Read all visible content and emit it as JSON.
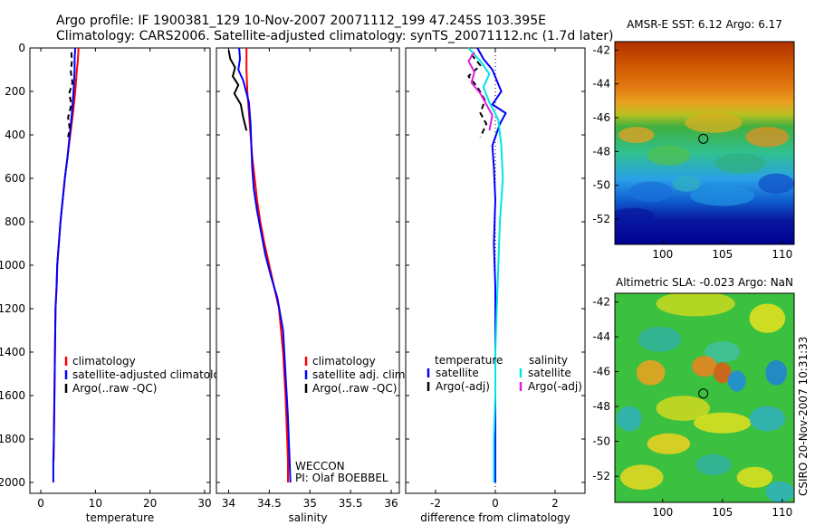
{
  "header": {
    "line1": "Argo profile: IF 1900381_129 10-Nov-2007 20071112_199 47.245S 103.395E",
    "line2": "Climatology: CARS2006. Satellite-adjusted climatology: synTS_20071112.nc (1.7d later)"
  },
  "side_stamp": "CSIRO 20-Nov-2007 10:31:33",
  "colors": {
    "climatology": "#ff0000",
    "satellite": "#0000ff",
    "argo": "#000000",
    "salinity_satellite": "#00e5e5",
    "salinity_argo": "#e020e0"
  },
  "chart_data": [
    {
      "type": "line",
      "xlabel": "temperature",
      "ylabel": "",
      "xlim": [
        -2,
        31
      ],
      "ylim": [
        2050,
        0
      ],
      "xticks": [
        "0",
        "10",
        "20",
        "30"
      ],
      "yticks": [
        "0",
        "200",
        "400",
        "600",
        "800",
        "1000",
        "1200",
        "1400",
        "1600",
        "1800",
        "2000"
      ],
      "legend": {
        "placement": "lower-right",
        "entries": [
          "climatology",
          "satellite-adjusted climatology",
          "Argo(..raw -QC)"
        ]
      },
      "series": [
        {
          "name": "climatology",
          "style": "solid",
          "x": [
            6.9,
            6.8,
            6.6,
            6.3,
            5.9,
            5.4,
            4.9,
            4.4,
            4.0,
            3.6,
            3.3,
            3.0,
            2.9,
            2.7,
            2.6,
            2.5,
            2.4,
            2.35
          ],
          "y": [
            0,
            50,
            100,
            200,
            300,
            400,
            500,
            600,
            700,
            800,
            900,
            1000,
            1100,
            1200,
            1400,
            1600,
            1800,
            1900
          ]
        },
        {
          "name": "satellite-adjusted climatology",
          "style": "solid",
          "x": [
            6.3,
            6.2,
            6.2,
            6.0,
            5.7,
            5.3,
            4.9,
            4.4,
            4.0,
            3.6,
            3.3,
            3.0,
            2.9,
            2.7,
            2.6,
            2.5,
            2.4,
            2.3,
            2.3
          ],
          "y": [
            0,
            50,
            100,
            200,
            300,
            400,
            500,
            600,
            700,
            800,
            900,
            1000,
            1100,
            1200,
            1400,
            1600,
            1800,
            1900,
            2000
          ]
        },
        {
          "name": "Argo(..raw -QC)",
          "style": "dashed",
          "x": [
            5.6,
            5.7,
            5.5,
            5.8,
            5.2,
            5.6,
            5.0,
            5.3,
            5.0
          ],
          "y": [
            20,
            60,
            110,
            160,
            210,
            260,
            320,
            370,
            410
          ]
        }
      ]
    },
    {
      "type": "line",
      "xlabel": "salinity",
      "ylabel": "",
      "xlim": [
        33.85,
        36.1
      ],
      "ylim": [
        2050,
        0
      ],
      "xticks": [
        "34",
        "34.5",
        "35",
        "35.5",
        "36"
      ],
      "legend": {
        "placement": "lower-right",
        "entries": [
          "climatology",
          "satellite adj. clim.",
          "Argo(..raw -QC)"
        ]
      },
      "annotations": [
        "WECCON",
        "PI: Olaf BOEBBEL"
      ],
      "series": [
        {
          "name": "climatology",
          "style": "solid",
          "x": [
            34.22,
            34.22,
            34.23,
            34.25,
            34.27,
            34.29,
            34.32,
            34.35,
            34.39,
            34.44,
            34.5,
            34.56,
            34.62,
            34.67,
            34.7,
            34.72,
            34.73,
            34.73
          ],
          "y": [
            0,
            100,
            200,
            300,
            400,
            500,
            600,
            700,
            800,
            900,
            1000,
            1100,
            1200,
            1400,
            1600,
            1800,
            1900,
            2000
          ]
        },
        {
          "name": "satellite adj. clim.",
          "style": "solid",
          "x": [
            34.13,
            34.14,
            34.12,
            34.18,
            34.25,
            34.27,
            34.28,
            34.29,
            34.31,
            34.35,
            34.4,
            34.45,
            34.52,
            34.6,
            34.67,
            34.7,
            34.73,
            34.75,
            34.76
          ],
          "y": [
            0,
            50,
            100,
            150,
            250,
            350,
            450,
            550,
            650,
            750,
            850,
            950,
            1050,
            1150,
            1300,
            1500,
            1700,
            1900,
            2000
          ]
        },
        {
          "name": "Argo(..raw -QC)",
          "style": "solid",
          "x": [
            34.0,
            34.02,
            34.08,
            34.05,
            34.12,
            34.07,
            34.15,
            34.18,
            34.22
          ],
          "y": [
            10,
            50,
            90,
            130,
            170,
            210,
            260,
            320,
            380
          ]
        }
      ]
    },
    {
      "type": "line",
      "xlabel": "difference from climatology",
      "ylabel": "",
      "xlim": [
        -3,
        3
      ],
      "ylim": [
        2050,
        0
      ],
      "xticks": [
        "-2",
        "0",
        "2"
      ],
      "legend": {
        "placement": "lower-right",
        "headings": [
          "temperature",
          "salinity"
        ],
        "entries": [
          "satellite",
          "Argo(-adj)",
          "satellite",
          "Argo(-adj)"
        ]
      },
      "series": [
        {
          "name": "temperature satellite",
          "style": "solid",
          "x": [
            -0.6,
            -0.4,
            -0.1,
            0.2,
            -0.1,
            0.35,
            0.15,
            -0.1,
            -0.05,
            0.0,
            -0.05,
            0.0,
            0.0,
            0.0,
            0.0,
            0.0
          ],
          "y": [
            0,
            50,
            100,
            200,
            260,
            300,
            350,
            450,
            550,
            700,
            900,
            1100,
            1300,
            1500,
            1800,
            2000
          ]
        },
        {
          "name": "temperature Argo(-adj)",
          "style": "dashed",
          "x": [
            -0.8,
            -0.5,
            -0.9,
            -0.6,
            -0.35,
            -0.5,
            -0.3,
            -0.5
          ],
          "y": [
            30,
            80,
            130,
            180,
            240,
            300,
            350,
            410
          ]
        },
        {
          "name": "salinity satellite",
          "style": "solid",
          "x": [
            -0.9,
            -0.5,
            -0.2,
            -0.4,
            -0.2,
            0.1,
            0.2,
            0.25,
            0.15,
            0.1,
            0.05,
            0.0,
            0.0,
            -0.05,
            -0.05,
            -0.05
          ],
          "y": [
            0,
            60,
            120,
            180,
            250,
            330,
            450,
            600,
            800,
            1000,
            1200,
            1400,
            1600,
            1800,
            1900,
            2000
          ]
        },
        {
          "name": "salinity Argo(-adj)",
          "style": "solid",
          "x": [
            -0.7,
            -0.9,
            -0.7,
            -0.8,
            -0.5,
            -0.3,
            -0.1,
            -0.2
          ],
          "y": [
            20,
            60,
            110,
            160,
            210,
            260,
            310,
            380
          ]
        }
      ]
    },
    {
      "type": "heatmap",
      "title": "AMSR-E SST: 6.12 Argo: 6.17",
      "xlim": [
        96,
        111
      ],
      "ylim": [
        -53.5,
        -41.5
      ],
      "xticks": [
        "100",
        "105",
        "110"
      ],
      "yticks": [
        "-42",
        "-44",
        "-46",
        "-48",
        "-50",
        "-52"
      ],
      "marker": {
        "lon": 103.4,
        "lat": -47.25
      }
    },
    {
      "type": "heatmap",
      "title": "Altimetric SLA: -0.023 Argo: NaN",
      "xlim": [
        96,
        111
      ],
      "ylim": [
        -53.5,
        -41.5
      ],
      "xticks": [
        "100",
        "105",
        "110"
      ],
      "yticks": [
        "-42",
        "-44",
        "-46",
        "-48",
        "-50",
        "-52"
      ],
      "marker": {
        "lon": 103.4,
        "lat": -47.25
      }
    }
  ]
}
